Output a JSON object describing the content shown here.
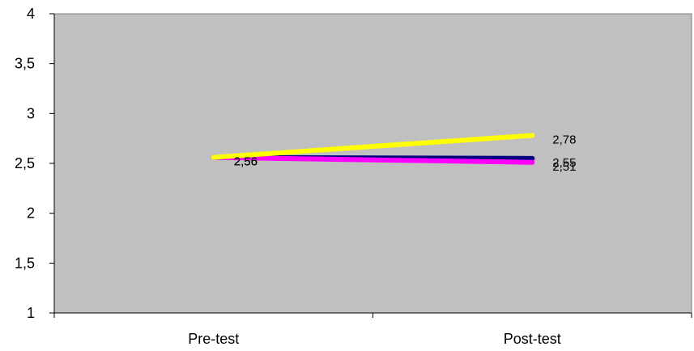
{
  "chart_data": {
    "type": "line",
    "categories": [
      "Pre-test",
      "Post-test"
    ],
    "series": [
      {
        "values": [
          2.56,
          2.55
        ],
        "color": "#000080",
        "labels": [
          "2,56",
          "2,55"
        ]
      },
      {
        "values": [
          2.56,
          2.51
        ],
        "color": "#ff00ff",
        "labels": [
          "2,56",
          "2,51"
        ]
      },
      {
        "values": [
          2.56,
          2.78
        ],
        "color": "#ffff00",
        "labels": [
          "2,56",
          "2,78"
        ]
      }
    ],
    "yticks": [
      {
        "value": 1,
        "label": "1"
      },
      {
        "value": 1.5,
        "label": "1,5"
      },
      {
        "value": 2,
        "label": "2"
      },
      {
        "value": 2.5,
        "label": "2,5"
      },
      {
        "value": 3,
        "label": "3"
      },
      {
        "value": 3.5,
        "label": "3,5"
      },
      {
        "value": 4,
        "label": "4"
      }
    ],
    "ylim": [
      1,
      4
    ],
    "grid": false,
    "plot_background": "#c0c0c0",
    "title": "",
    "xlabel": "",
    "ylabel": ""
  }
}
